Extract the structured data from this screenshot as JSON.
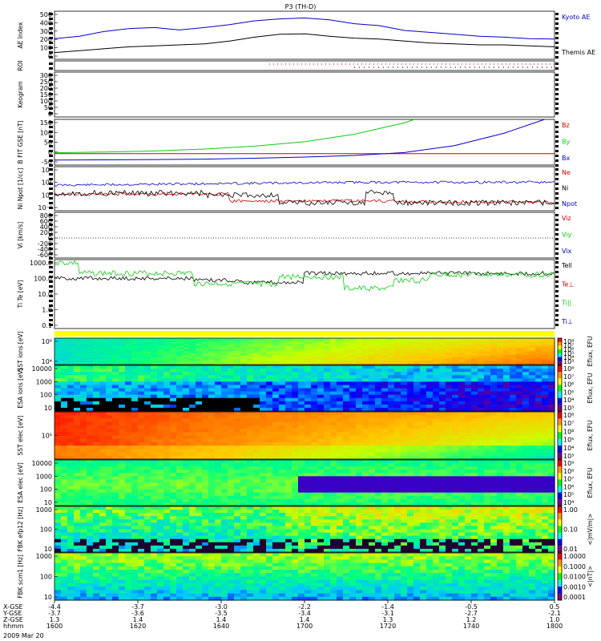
{
  "title": "P3 (TH-D)",
  "date_label": "2009 Mar 20",
  "colors": {
    "red": "#cc0000",
    "green": "#10cc10",
    "blue": "#0000c8",
    "black": "#000000"
  },
  "chart_data": [
    {
      "type": "line",
      "panel": "ae",
      "ylabel": "AE Index",
      "yticks": [
        "500",
        "400",
        "300",
        "200",
        "100",
        "0"
      ],
      "ylim": [
        0,
        500
      ],
      "series": [
        {
          "name": "Kyoto AE",
          "color": "#0000c8",
          "x": [
            0,
            0.05,
            0.1,
            0.15,
            0.2,
            0.25,
            0.3,
            0.35,
            0.4,
            0.45,
            0.5,
            0.55,
            0.6,
            0.65,
            0.7,
            0.75,
            0.8,
            0.85,
            0.9,
            0.95,
            1.0
          ],
          "values": [
            215,
            240,
            290,
            320,
            330,
            305,
            330,
            360,
            400,
            420,
            430,
            410,
            370,
            350,
            300,
            280,
            260,
            240,
            230,
            215,
            210
          ]
        },
        {
          "name": "Themis AE",
          "color": "#000000",
          "x": [
            0,
            0.05,
            0.1,
            0.15,
            0.2,
            0.25,
            0.3,
            0.35,
            0.4,
            0.45,
            0.5,
            0.55,
            0.6,
            0.65,
            0.7,
            0.75,
            0.8,
            0.85,
            0.9,
            0.95,
            1.0
          ],
          "values": [
            70,
            90,
            110,
            130,
            140,
            150,
            160,
            190,
            230,
            260,
            265,
            240,
            220,
            210,
            190,
            170,
            160,
            150,
            150,
            140,
            130
          ]
        }
      ]
    },
    {
      "type": "scatter",
      "panel": "roi",
      "ylabel": "ROI"
    },
    {
      "type": "line",
      "panel": "keogram",
      "ylabel": "Keogram",
      "yticks": [
        "300",
        "250",
        "200",
        "150",
        "100",
        "50",
        "0"
      ]
    },
    {
      "type": "line",
      "panel": "bfit",
      "ylabel": "B FIT GSE [nT]",
      "yticks": [
        "150",
        "100",
        "50",
        "0",
        "-50"
      ],
      "ylim": [
        -50,
        150
      ],
      "series": [
        {
          "name": "Bz",
          "color": "#cc0000",
          "x": [
            0,
            1
          ],
          "values": [
            0,
            0
          ]
        },
        {
          "name": "By",
          "color": "#10cc10",
          "x": [
            0,
            0.1,
            0.2,
            0.3,
            0.4,
            0.5,
            0.6,
            0.7,
            0.72
          ],
          "values": [
            4,
            7,
            12,
            20,
            33,
            52,
            85,
            135,
            150
          ]
        },
        {
          "name": "Bx",
          "color": "#0000c8",
          "x": [
            0,
            0.1,
            0.2,
            0.3,
            0.4,
            0.5,
            0.6,
            0.7,
            0.8,
            0.9,
            0.98
          ],
          "values": [
            -28,
            -27,
            -26,
            -24,
            -20,
            -15,
            -8,
            5,
            35,
            90,
            150
          ]
        }
      ]
    },
    {
      "type": "line",
      "panel": "density",
      "ylabel": "Ni Npot [1/cc]",
      "yticks": [
        "10⁴",
        "10²",
        "10⁰",
        "10⁻²"
      ]
    },
    {
      "type": "line",
      "panel": "velocity",
      "ylabel": "Vi [km/s]",
      "yticks": [
        "800",
        "600",
        "400",
        "200",
        "0",
        "-200",
        "-400",
        "-600"
      ]
    },
    {
      "type": "line",
      "panel": "temp",
      "ylabel": "Ti Te [eV]",
      "yticks": [
        "1000.0",
        "100.0",
        "10.0",
        "1.0",
        "0.1"
      ]
    },
    {
      "type": "heatmap",
      "panel": "sst_i",
      "ylabel": "SST ions [eV]",
      "yticks": [
        "10⁶",
        "10⁴"
      ],
      "zlabel": "Eflux, EFU",
      "zticks": [
        "10⁸",
        "10⁷",
        "10⁶",
        "10⁵",
        "10⁴",
        "10³"
      ]
    },
    {
      "type": "heatmap",
      "panel": "esa_i",
      "ylabel": "ESA ions [eV]",
      "yticks": [
        "10000",
        "1000",
        "100",
        "10"
      ],
      "zlabel": "Eflux, EFU",
      "zticks": [
        "10⁸",
        "10⁷",
        "10⁶",
        "10⁵",
        "10⁴",
        "10³"
      ]
    },
    {
      "type": "heatmap",
      "panel": "sst_e",
      "ylabel": "SST elec [eV]",
      "yticks": [
        "10⁵"
      ],
      "zlabel": "Eflux, EFU",
      "zticks": [
        "10⁸",
        "10⁷",
        "10⁶",
        "10⁵",
        "10⁴",
        "10³"
      ]
    },
    {
      "type": "heatmap",
      "panel": "esa_e",
      "ylabel": "ESA elec [eV]",
      "yticks": [
        "10000",
        "1000",
        "100",
        "10"
      ],
      "zlabel": "Eflux, EFU",
      "zticks": [
        "10⁹",
        "10⁸",
        "10⁷",
        "10⁶",
        "10⁵",
        "10⁴"
      ]
    },
    {
      "type": "heatmap",
      "panel": "fbk_e",
      "ylabel": "FBK efp12 [Hz]",
      "yticks": [
        "1000",
        "100",
        "10"
      ],
      "zlabel": "<|mV/m|>",
      "zticks": [
        "1.00",
        "0.10",
        "0.01"
      ]
    },
    {
      "type": "heatmap",
      "panel": "fbk_b",
      "ylabel": "FBK scm1 [Hz]",
      "yticks": [
        "1000",
        "100",
        "10"
      ],
      "zlabel": "<|nT|>",
      "zticks": [
        "1.0000",
        "0.1000",
        "0.0100",
        "0.0010",
        "0.0001"
      ]
    }
  ],
  "legends": {
    "ae": [
      "Kyoto AE",
      "Themis AE"
    ],
    "bfit": [
      "Bz",
      "By",
      "Bx"
    ],
    "density": [
      "Ne",
      "Ni",
      "Npot"
    ],
    "velocity": [
      "Viz",
      "Viy",
      "Vix"
    ],
    "temp": [
      "Tell",
      "Te⊥",
      "Ti||",
      "Ti⊥"
    ]
  },
  "xaxis": {
    "row_labels": [
      "X-GSE",
      "Y-GSE",
      "Z-GSE",
      "hhmm"
    ],
    "columns": [
      {
        "x": "-4.4",
        "y": "-3.7",
        "z": "1.3",
        "t": "1600"
      },
      {
        "x": "-3.7",
        "y": "-3.6",
        "z": "1.4",
        "t": "1620"
      },
      {
        "x": "-3.0",
        "y": "-3.5",
        "z": "1.4",
        "t": "1640"
      },
      {
        "x": "-2.2",
        "y": "-3.4",
        "z": "1.4",
        "t": "1700"
      },
      {
        "x": "-1.4",
        "y": "-3.1",
        "z": "1.3",
        "t": "1720"
      },
      {
        "x": "-0.5",
        "y": "-2.7",
        "z": "1.2",
        "t": "1740"
      },
      {
        "x": "0.5",
        "y": "-2.1",
        "z": "1.0",
        "t": "1800"
      }
    ]
  }
}
